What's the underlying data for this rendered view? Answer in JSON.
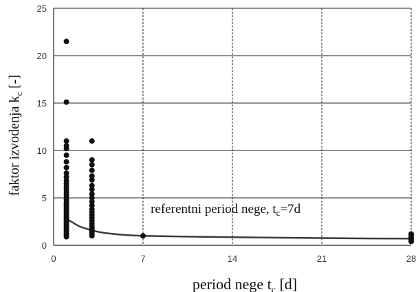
{
  "chart_data": {
    "type": "scatter",
    "xlabel": {
      "text": "period nege t",
      "sub": "c",
      "unit": " [d]"
    },
    "ylabel": {
      "text": "faktor izvodenja k",
      "sub": "c",
      "unit": " [-]"
    },
    "xlim": [
      0,
      28
    ],
    "ylim": [
      0,
      25
    ],
    "xticks": [
      0,
      7,
      14,
      21,
      28
    ],
    "yticks": [
      0,
      5,
      10,
      15,
      20,
      25
    ],
    "grid": {
      "horizontal": "solid",
      "vertical": "dashed"
    },
    "annotation": {
      "text": "referentni period nege, t",
      "sub": "c",
      "rest": "=7d",
      "x": 7.6,
      "y": 3.4
    },
    "colors": {
      "points": "#111111",
      "curve": "#3a3a3a",
      "grid": "#222222"
    },
    "series": [
      {
        "type": "scatter",
        "points": [
          [
            1,
            21.5
          ],
          [
            1,
            15.1
          ],
          [
            1,
            11.0
          ],
          [
            1,
            10.5
          ],
          [
            1,
            10.2
          ],
          [
            1,
            9.5
          ],
          [
            1,
            8.8
          ],
          [
            1,
            8.2
          ],
          [
            1,
            7.6
          ],
          [
            1,
            7.2
          ],
          [
            1,
            6.8
          ],
          [
            1,
            6.5
          ],
          [
            1,
            6.2
          ],
          [
            1,
            5.9
          ],
          [
            1,
            5.6
          ],
          [
            1,
            5.3
          ],
          [
            1,
            5.0
          ],
          [
            1,
            4.8
          ],
          [
            1,
            4.5
          ],
          [
            1,
            4.3
          ],
          [
            1,
            4.1
          ],
          [
            1,
            3.9
          ],
          [
            1,
            3.7
          ],
          [
            1,
            3.5
          ],
          [
            1,
            3.3
          ],
          [
            1,
            3.1
          ],
          [
            1,
            2.9
          ],
          [
            1,
            2.7
          ],
          [
            1,
            2.5
          ],
          [
            1,
            2.3
          ],
          [
            1,
            2.1
          ],
          [
            1,
            1.9
          ],
          [
            1,
            1.7
          ],
          [
            1,
            1.5
          ],
          [
            1,
            1.3
          ],
          [
            1,
            1.1
          ],
          [
            1,
            0.9
          ],
          [
            3,
            11.0
          ],
          [
            3,
            9.0
          ],
          [
            3,
            8.5
          ],
          [
            3,
            7.9
          ],
          [
            3,
            7.3
          ],
          [
            3,
            6.9
          ],
          [
            3,
            6.3
          ],
          [
            3,
            5.9
          ],
          [
            3,
            5.4
          ],
          [
            3,
            5.0
          ],
          [
            3,
            4.6
          ],
          [
            3,
            4.2
          ],
          [
            3,
            3.8
          ],
          [
            3,
            3.5
          ],
          [
            3,
            3.2
          ],
          [
            3,
            2.9
          ],
          [
            3,
            2.6
          ],
          [
            3,
            2.3
          ],
          [
            3,
            2.0
          ],
          [
            3,
            1.8
          ],
          [
            3,
            1.6
          ],
          [
            3,
            1.4
          ],
          [
            3,
            1.2
          ],
          [
            3,
            1.0
          ],
          [
            7,
            1.0
          ],
          [
            28,
            1.2
          ],
          [
            28,
            1.0
          ],
          [
            28,
            0.8
          ],
          [
            28,
            0.6
          ],
          [
            28,
            0.4
          ]
        ]
      },
      {
        "type": "line",
        "points": [
          [
            1,
            2.8
          ],
          [
            2,
            2.0
          ],
          [
            3,
            1.55
          ],
          [
            4,
            1.3
          ],
          [
            5,
            1.15
          ],
          [
            6,
            1.05
          ],
          [
            7,
            1.0
          ],
          [
            10,
            0.92
          ],
          [
            14,
            0.85
          ],
          [
            18,
            0.8
          ],
          [
            21,
            0.76
          ],
          [
            25,
            0.72
          ],
          [
            28,
            0.7
          ]
        ]
      }
    ]
  }
}
